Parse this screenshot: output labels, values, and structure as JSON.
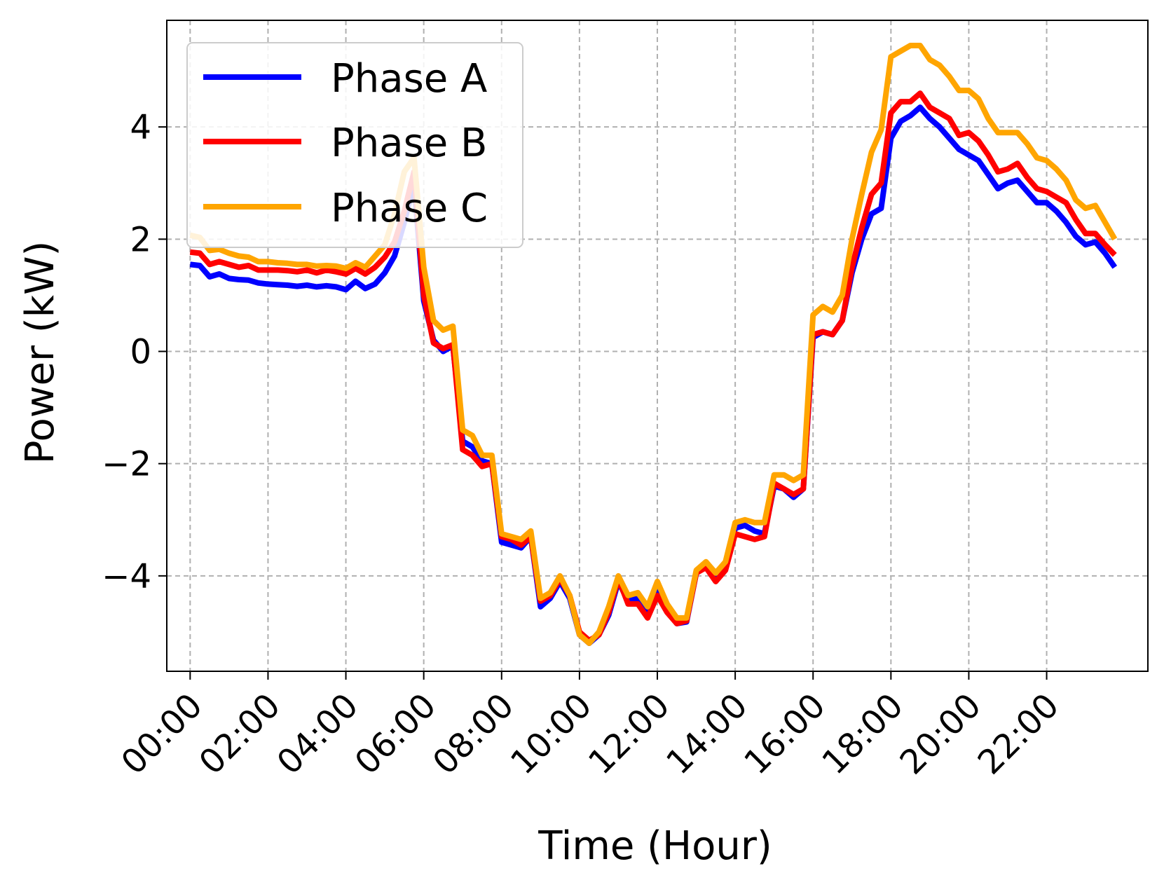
{
  "chart_data": {
    "type": "line",
    "title": "",
    "xlabel": "Time (Hour)",
    "ylabel": "Power (kW)",
    "xlim": [
      -0.6,
      24.6
    ],
    "ylim": [
      -5.7,
      5.9
    ],
    "x_ticks": [
      0,
      2,
      4,
      6,
      8,
      10,
      12,
      14,
      16,
      18,
      20,
      22
    ],
    "x_tick_labels": [
      "00:00",
      "02:00",
      "04:00",
      "06:00",
      "08:00",
      "10:00",
      "12:00",
      "14:00",
      "16:00",
      "18:00",
      "20:00",
      "22:00"
    ],
    "y_ticks": [
      -4,
      -2,
      0,
      2,
      4
    ],
    "y_tick_labels": [
      "−4",
      "−2",
      "0",
      "2",
      "4"
    ],
    "grid": true,
    "legend_position": "upper-left",
    "x": [
      0,
      0.25,
      0.5,
      0.75,
      1,
      1.25,
      1.5,
      1.75,
      2,
      2.25,
      2.5,
      2.75,
      3,
      3.25,
      3.5,
      3.75,
      4,
      4.25,
      4.5,
      4.75,
      5,
      5.25,
      5.5,
      5.75,
      6,
      6.25,
      6.5,
      6.75,
      7,
      7.25,
      7.5,
      7.75,
      8,
      8.25,
      8.5,
      8.75,
      9,
      9.25,
      9.5,
      9.75,
      10,
      10.25,
      10.5,
      10.75,
      11,
      11.25,
      11.5,
      11.75,
      12,
      12.25,
      12.5,
      12.75,
      13,
      13.25,
      13.5,
      13.75,
      14,
      14.25,
      14.5,
      14.75,
      15,
      15.25,
      15.5,
      15.75,
      16,
      16.25,
      16.5,
      16.75,
      17,
      17.25,
      17.5,
      17.75,
      18,
      18.25,
      18.5,
      18.75,
      19,
      19.25,
      19.5,
      19.75,
      20,
      20.25,
      20.5,
      20.75,
      21,
      21.25,
      21.5,
      21.75,
      22,
      22.25,
      22.5,
      22.75,
      23,
      23.25,
      23.5,
      23.75
    ],
    "series": [
      {
        "name": "Phase A",
        "color": "#0000ff",
        "values": [
          1.55,
          1.53,
          1.33,
          1.38,
          1.3,
          1.28,
          1.27,
          1.22,
          1.2,
          1.19,
          1.18,
          1.16,
          1.18,
          1.15,
          1.17,
          1.15,
          1.1,
          1.25,
          1.12,
          1.2,
          1.4,
          1.7,
          2.3,
          3.0,
          0.9,
          0.2,
          0.0,
          0.1,
          -1.6,
          -1.7,
          -1.95,
          -2.0,
          -3.4,
          -3.45,
          -3.5,
          -3.3,
          -4.55,
          -4.4,
          -4.1,
          -4.4,
          -5.05,
          -5.2,
          -5.05,
          -4.7,
          -4.1,
          -4.45,
          -4.4,
          -4.6,
          -4.25,
          -4.6,
          -4.85,
          -4.82,
          -3.95,
          -3.8,
          -4.05,
          -3.85,
          -3.15,
          -3.1,
          -3.2,
          -3.25,
          -2.4,
          -2.45,
          -2.6,
          -2.45,
          0.25,
          0.35,
          0.3,
          0.55,
          1.4,
          2.0,
          2.45,
          2.55,
          3.8,
          4.1,
          4.2,
          4.35,
          4.15,
          4.0,
          3.8,
          3.6,
          3.5,
          3.4,
          3.15,
          2.9,
          3.0,
          3.05,
          2.85,
          2.65,
          2.65,
          2.5,
          2.3,
          2.05,
          1.9,
          1.95,
          1.75,
          1.5
        ]
      },
      {
        "name": "Phase B",
        "color": "#ff0000",
        "values": [
          1.77,
          1.75,
          1.55,
          1.6,
          1.55,
          1.5,
          1.53,
          1.45,
          1.45,
          1.45,
          1.44,
          1.42,
          1.45,
          1.4,
          1.45,
          1.42,
          1.38,
          1.48,
          1.38,
          1.5,
          1.68,
          1.95,
          2.5,
          3.2,
          1.0,
          0.15,
          0.05,
          0.12,
          -1.75,
          -1.85,
          -2.05,
          -2.0,
          -3.3,
          -3.35,
          -3.45,
          -3.3,
          -4.45,
          -4.35,
          -4.05,
          -4.35,
          -5.0,
          -5.15,
          -5.05,
          -4.65,
          -4.05,
          -4.5,
          -4.5,
          -4.75,
          -4.35,
          -4.65,
          -4.85,
          -4.8,
          -3.95,
          -3.85,
          -4.1,
          -3.9,
          -3.25,
          -3.3,
          -3.35,
          -3.3,
          -2.35,
          -2.45,
          -2.55,
          -2.45,
          0.3,
          0.35,
          0.3,
          0.55,
          1.5,
          2.2,
          2.8,
          3.0,
          4.25,
          4.45,
          4.45,
          4.6,
          4.35,
          4.25,
          4.15,
          3.85,
          3.9,
          3.75,
          3.5,
          3.2,
          3.25,
          3.35,
          3.1,
          2.9,
          2.85,
          2.75,
          2.65,
          2.35,
          2.1,
          2.1,
          1.9,
          1.72
        ]
      },
      {
        "name": "Phase C",
        "color": "#ffa500",
        "values": [
          2.07,
          2.03,
          1.8,
          1.82,
          1.75,
          1.7,
          1.68,
          1.6,
          1.6,
          1.58,
          1.57,
          1.55,
          1.55,
          1.52,
          1.53,
          1.52,
          1.48,
          1.58,
          1.5,
          1.7,
          1.9,
          2.45,
          3.2,
          3.45,
          1.5,
          0.55,
          0.38,
          0.45,
          -1.4,
          -1.5,
          -1.85,
          -1.85,
          -3.25,
          -3.3,
          -3.35,
          -3.2,
          -4.4,
          -4.3,
          -4.0,
          -4.35,
          -5.05,
          -5.2,
          -5.0,
          -4.55,
          -4.0,
          -4.35,
          -4.3,
          -4.55,
          -4.1,
          -4.5,
          -4.75,
          -4.75,
          -3.9,
          -3.75,
          -3.95,
          -3.75,
          -3.05,
          -3.0,
          -3.05,
          -3.05,
          -2.2,
          -2.2,
          -2.3,
          -2.2,
          0.65,
          0.8,
          0.7,
          1.0,
          2.0,
          2.8,
          3.55,
          3.95,
          5.25,
          5.35,
          5.45,
          5.45,
          5.2,
          5.1,
          4.9,
          4.65,
          4.65,
          4.5,
          4.15,
          3.9,
          3.9,
          3.9,
          3.7,
          3.45,
          3.4,
          3.25,
          3.05,
          2.7,
          2.55,
          2.6,
          2.3,
          2.0
        ]
      }
    ]
  }
}
